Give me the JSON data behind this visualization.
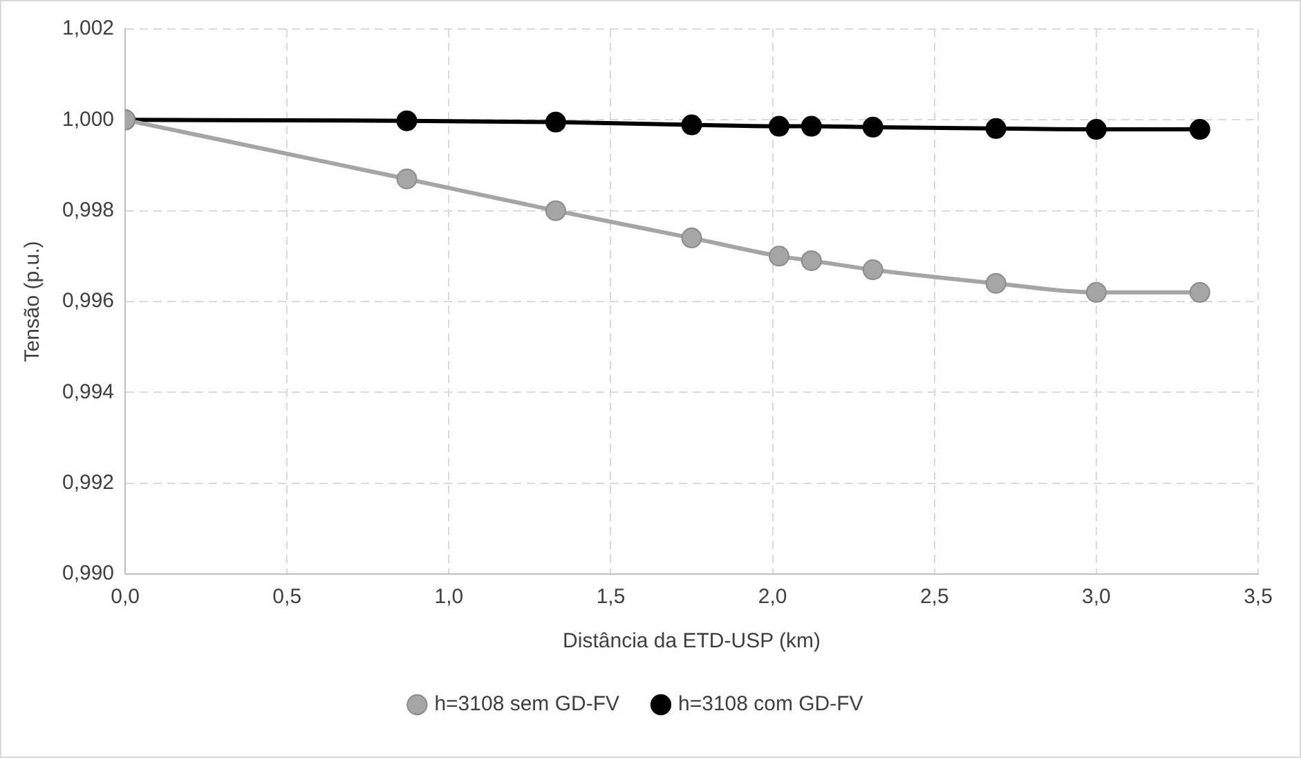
{
  "chart_data": {
    "type": "line",
    "xlabel": "Distância da ETD-USP (km)",
    "ylabel": "Tensão (p.u.)",
    "x": [
      0,
      0.87,
      1.33,
      1.75,
      2.02,
      2.12,
      2.31,
      2.69,
      3.0,
      3.32
    ],
    "series": [
      {
        "name": "h=3108 sem GD-FV",
        "color": "#a5a5a5",
        "values": [
          1.0,
          0.9987,
          0.998,
          0.9974,
          0.997,
          0.9969,
          0.9967,
          0.9964,
          0.9962,
          0.9962
        ]
      },
      {
        "name": "h=3108 com GD-FV",
        "color": "#000000",
        "values": [
          1.0,
          0.99998,
          0.99995,
          0.99989,
          0.99986,
          0.99986,
          0.99984,
          0.99981,
          0.99979,
          0.99979
        ]
      }
    ],
    "xlim": [
      0,
      3.5
    ],
    "xticks": [
      {
        "value": 0,
        "label": "0,0"
      },
      {
        "value": 0.5,
        "label": "0,5"
      },
      {
        "value": 1,
        "label": "1,0"
      },
      {
        "value": 1.5,
        "label": "1,5"
      },
      {
        "value": 2,
        "label": "2,0"
      },
      {
        "value": 2.5,
        "label": "2,5"
      },
      {
        "value": 3,
        "label": "3,0"
      },
      {
        "value": 3.5,
        "label": "3,5"
      }
    ],
    "ylim": [
      0.99,
      1.002
    ],
    "yticks": [
      {
        "value": 0.99,
        "label": "0,990"
      },
      {
        "value": 0.992,
        "label": "0,992"
      },
      {
        "value": 0.994,
        "label": "0,994"
      },
      {
        "value": 0.996,
        "label": "0,996"
      },
      {
        "value": 0.998,
        "label": "0,998"
      },
      {
        "value": 1.0,
        "label": "1,000"
      },
      {
        "value": 1.002,
        "label": "1,002"
      }
    ],
    "grid": true,
    "legend": "bottom",
    "marker": "circle",
    "line_style": "solid"
  }
}
